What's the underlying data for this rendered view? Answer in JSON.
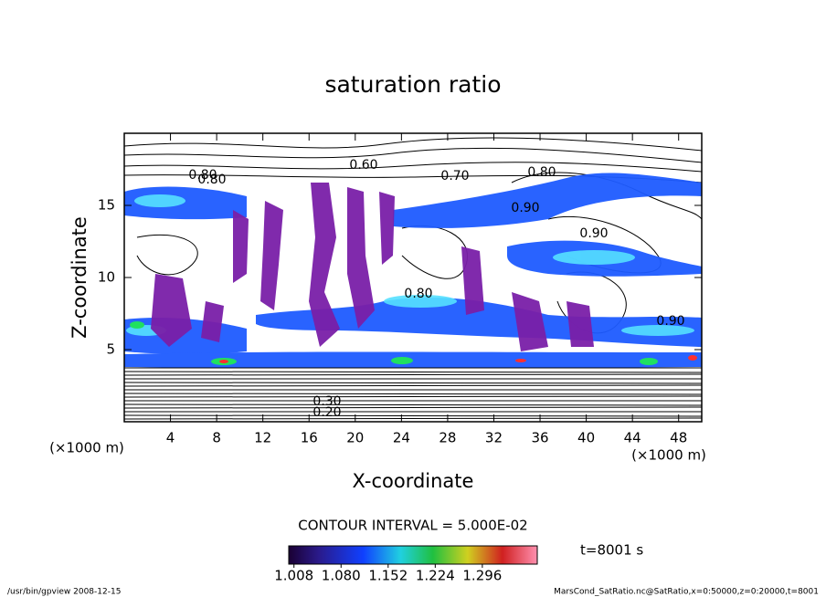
{
  "chart_data": {
    "type": "contour",
    "title": "saturation ratio",
    "x_label": "X-coordinate",
    "y_label": "Z-coordinate",
    "x_unit": "(×1000 m)",
    "y_unit": "(×1000 m)",
    "xlim": [
      0,
      50
    ],
    "ylim": [
      0,
      20
    ],
    "xticks": [
      4,
      8,
      12,
      16,
      20,
      24,
      28,
      32,
      36,
      40,
      44,
      48
    ],
    "yticks": [
      5,
      10,
      15
    ],
    "contour_labels": [
      "0.80",
      "0.60",
      "0.70",
      "0.80",
      "0.90",
      "0.90",
      "0.80",
      "0.90",
      "0.80",
      "0.20",
      "0.30"
    ],
    "contour_interval": "CONTOUR INTERVAL = 5.000E-02",
    "colorbar": {
      "clim": [
        1.0,
        1.38
      ],
      "ticks": [
        {
          "value": 1.008,
          "label": "1.008"
        },
        {
          "value": 1.08,
          "label": "1.080"
        },
        {
          "value": 1.152,
          "label": "1.152"
        },
        {
          "value": 1.224,
          "label": "1.224"
        },
        {
          "value": 1.296,
          "label": "1.296"
        }
      ]
    },
    "time_label": "t=8001 s",
    "footer_left": "/usr/bin/gpview   2008-12-15",
    "footer_right": "MarsCond_SatRatio.nc@SatRatio,x=0:50000,z=0:20000,t=8001"
  }
}
